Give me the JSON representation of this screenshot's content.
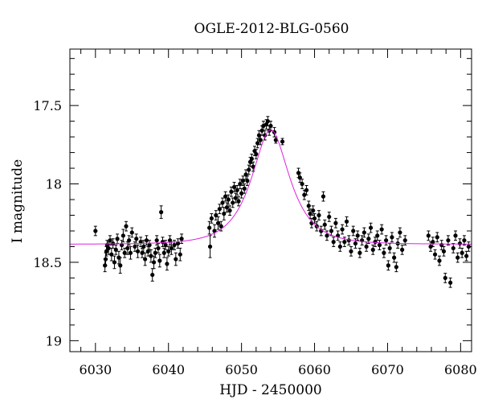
{
  "chart_data": {
    "type": "scatter",
    "title": "OGLE-2012-BLG-0560",
    "xlabel": "HJD - 2450000",
    "ylabel": "I magnitude",
    "xlim": [
      6026.5,
      6081.5
    ],
    "ylim": [
      19.07,
      17.14
    ],
    "y_axis_inverted": true,
    "grid": false,
    "x_ticks": [
      6030,
      6040,
      6050,
      6060,
      6070,
      6080
    ],
    "x_tick_labels": [
      "6030",
      "6040",
      "6050",
      "6060",
      "6070",
      "6080"
    ],
    "y_ticks": [
      17.5,
      18,
      18.5,
      19
    ],
    "y_tick_labels": [
      "17.5",
      "18",
      "18.5",
      "19"
    ],
    "colors": {
      "points": "#000000",
      "model": "#dd22dd"
    },
    "model": {
      "baseline_mag": 18.385,
      "peak_mag": 17.655,
      "t0": 6054.0,
      "tE": 4.2
    },
    "series": [
      {
        "points": [
          [
            6030.0,
            18.3,
            0.03
          ],
          [
            6031.3,
            18.52,
            0.04
          ],
          [
            6031.4,
            18.48,
            0.04
          ],
          [
            6031.5,
            18.43,
            0.03
          ],
          [
            6031.6,
            18.39,
            0.03
          ],
          [
            6031.8,
            18.41,
            0.04
          ],
          [
            6032.0,
            18.36,
            0.03
          ],
          [
            6032.2,
            18.45,
            0.04
          ],
          [
            6032.4,
            18.38,
            0.03
          ],
          [
            6032.6,
            18.5,
            0.04
          ],
          [
            6032.8,
            18.42,
            0.03
          ],
          [
            6033.0,
            18.35,
            0.03
          ],
          [
            6033.2,
            18.47,
            0.04
          ],
          [
            6033.4,
            18.52,
            0.05
          ],
          [
            6033.6,
            18.39,
            0.03
          ],
          [
            6033.8,
            18.33,
            0.04
          ],
          [
            6034.0,
            18.44,
            0.03
          ],
          [
            6034.2,
            18.27,
            0.03
          ],
          [
            6034.4,
            18.41,
            0.04
          ],
          [
            6034.6,
            18.36,
            0.03
          ],
          [
            6034.8,
            18.44,
            0.04
          ],
          [
            6035.0,
            18.31,
            0.03
          ],
          [
            6035.4,
            18.4,
            0.03
          ],
          [
            6035.6,
            18.35,
            0.03
          ],
          [
            6035.8,
            18.43,
            0.04
          ],
          [
            6036.2,
            18.37,
            0.03
          ],
          [
            6036.4,
            18.44,
            0.03
          ],
          [
            6036.6,
            18.4,
            0.04
          ],
          [
            6036.8,
            18.48,
            0.04
          ],
          [
            6037.0,
            18.36,
            0.03
          ],
          [
            6037.2,
            18.43,
            0.03
          ],
          [
            6037.4,
            18.39,
            0.03
          ],
          [
            6037.6,
            18.46,
            0.04
          ],
          [
            6037.8,
            18.58,
            0.04
          ],
          [
            6038.0,
            18.5,
            0.04
          ],
          [
            6038.2,
            18.44,
            0.03
          ],
          [
            6038.4,
            18.36,
            0.03
          ],
          [
            6038.6,
            18.41,
            0.03
          ],
          [
            6038.8,
            18.49,
            0.04
          ],
          [
            6039.0,
            18.18,
            0.04
          ],
          [
            6039.2,
            18.37,
            0.03
          ],
          [
            6039.4,
            18.44,
            0.03
          ],
          [
            6039.6,
            18.39,
            0.03
          ],
          [
            6039.8,
            18.51,
            0.04
          ],
          [
            6040.0,
            18.43,
            0.03
          ],
          [
            6040.2,
            18.36,
            0.03
          ],
          [
            6040.4,
            18.41,
            0.04
          ],
          [
            6040.8,
            18.39,
            0.03
          ],
          [
            6041.0,
            18.48,
            0.04
          ],
          [
            6041.3,
            18.38,
            0.03
          ],
          [
            6041.6,
            18.45,
            0.04
          ],
          [
            6041.8,
            18.35,
            0.03
          ],
          [
            6045.6,
            18.28,
            0.04
          ],
          [
            6045.7,
            18.4,
            0.07
          ],
          [
            6045.9,
            18.22,
            0.03
          ],
          [
            6046.3,
            18.3,
            0.04
          ],
          [
            6046.5,
            18.2,
            0.03
          ],
          [
            6046.8,
            18.25,
            0.04
          ],
          [
            6047.0,
            18.16,
            0.03
          ],
          [
            6047.2,
            18.27,
            0.03
          ],
          [
            6047.4,
            18.12,
            0.03
          ],
          [
            6047.6,
            18.19,
            0.04
          ],
          [
            6047.8,
            18.08,
            0.03
          ],
          [
            6048.0,
            18.15,
            0.03
          ],
          [
            6048.2,
            18.1,
            0.03
          ],
          [
            6048.4,
            18.17,
            0.03
          ],
          [
            6048.6,
            18.05,
            0.03
          ],
          [
            6048.8,
            18.12,
            0.03
          ],
          [
            6049.0,
            18.02,
            0.03
          ],
          [
            6049.2,
            18.09,
            0.03
          ],
          [
            6049.4,
            18.04,
            0.03
          ],
          [
            6049.6,
            18.11,
            0.03
          ],
          [
            6049.8,
            18.0,
            0.03
          ],
          [
            6050.0,
            18.06,
            0.03
          ],
          [
            6050.2,
            17.98,
            0.03
          ],
          [
            6050.4,
            18.03,
            0.03
          ],
          [
            6050.6,
            17.94,
            0.03
          ],
          [
            6050.8,
            17.98,
            0.03
          ],
          [
            6051.0,
            17.91,
            0.03
          ],
          [
            6051.2,
            17.86,
            0.03
          ],
          [
            6051.4,
            17.84,
            0.03
          ],
          [
            6051.6,
            17.89,
            0.03
          ],
          [
            6051.8,
            17.79,
            0.03
          ],
          [
            6052.0,
            17.81,
            0.03
          ],
          [
            6052.2,
            17.74,
            0.03
          ],
          [
            6052.4,
            17.69,
            0.03
          ],
          [
            6052.6,
            17.72,
            0.03
          ],
          [
            6052.8,
            17.66,
            0.03
          ],
          [
            6053.0,
            17.63,
            0.03
          ],
          [
            6053.2,
            17.69,
            0.03
          ],
          [
            6053.4,
            17.62,
            0.03
          ],
          [
            6053.6,
            17.6,
            0.03
          ],
          [
            6053.8,
            17.66,
            0.03
          ],
          [
            6054.0,
            17.63,
            0.03
          ],
          [
            6054.5,
            17.67,
            0.03
          ],
          [
            6054.7,
            17.72,
            0.02
          ],
          [
            6055.6,
            17.73,
            0.02
          ],
          [
            6057.8,
            17.93,
            0.03
          ],
          [
            6058.0,
            17.96,
            0.03
          ],
          [
            6058.3,
            18.0,
            0.03
          ],
          [
            6058.6,
            18.07,
            0.03
          ],
          [
            6058.9,
            18.04,
            0.03
          ],
          [
            6059.2,
            18.14,
            0.03
          ],
          [
            6059.4,
            18.19,
            0.03
          ],
          [
            6059.6,
            18.25,
            0.03
          ],
          [
            6059.8,
            18.17,
            0.03
          ],
          [
            6060.0,
            18.22,
            0.03
          ],
          [
            6060.3,
            18.27,
            0.03
          ],
          [
            6060.6,
            18.2,
            0.03
          ],
          [
            6060.9,
            18.3,
            0.03
          ],
          [
            6061.2,
            18.08,
            0.03
          ],
          [
            6061.4,
            18.26,
            0.03
          ],
          [
            6061.7,
            18.33,
            0.03
          ],
          [
            6062.0,
            18.21,
            0.03
          ],
          [
            6062.3,
            18.3,
            0.03
          ],
          [
            6062.6,
            18.37,
            0.03
          ],
          [
            6062.9,
            18.25,
            0.03
          ],
          [
            6063.2,
            18.33,
            0.03
          ],
          [
            6063.5,
            18.4,
            0.03
          ],
          [
            6063.8,
            18.29,
            0.03
          ],
          [
            6064.1,
            18.37,
            0.03
          ],
          [
            6064.4,
            18.24,
            0.03
          ],
          [
            6064.7,
            18.36,
            0.03
          ],
          [
            6065.0,
            18.43,
            0.03
          ],
          [
            6065.3,
            18.3,
            0.03
          ],
          [
            6065.6,
            18.38,
            0.03
          ],
          [
            6065.9,
            18.33,
            0.03
          ],
          [
            6066.2,
            18.44,
            0.03
          ],
          [
            6066.5,
            18.36,
            0.03
          ],
          [
            6066.8,
            18.31,
            0.03
          ],
          [
            6067.1,
            18.4,
            0.03
          ],
          [
            6067.4,
            18.35,
            0.03
          ],
          [
            6067.7,
            18.28,
            0.03
          ],
          [
            6068.0,
            18.42,
            0.03
          ],
          [
            6068.3,
            18.37,
            0.03
          ],
          [
            6068.6,
            18.33,
            0.03
          ],
          [
            6068.9,
            18.39,
            0.03
          ],
          [
            6069.2,
            18.29,
            0.03
          ],
          [
            6069.5,
            18.44,
            0.03
          ],
          [
            6069.8,
            18.36,
            0.03
          ],
          [
            6070.1,
            18.52,
            0.03
          ],
          [
            6070.3,
            18.41,
            0.03
          ],
          [
            6070.6,
            18.34,
            0.03
          ],
          [
            6070.9,
            18.47,
            0.03
          ],
          [
            6071.2,
            18.53,
            0.03
          ],
          [
            6071.4,
            18.38,
            0.03
          ],
          [
            6071.7,
            18.31,
            0.03
          ],
          [
            6072.0,
            18.42,
            0.03
          ],
          [
            6072.4,
            18.36,
            0.03
          ],
          [
            6075.6,
            18.33,
            0.03
          ],
          [
            6075.9,
            18.4,
            0.03
          ],
          [
            6076.2,
            18.37,
            0.03
          ],
          [
            6076.5,
            18.45,
            0.03
          ],
          [
            6076.8,
            18.34,
            0.03
          ],
          [
            6077.1,
            18.49,
            0.03
          ],
          [
            6077.4,
            18.39,
            0.03
          ],
          [
            6077.7,
            18.43,
            0.03
          ],
          [
            6077.9,
            18.6,
            0.03
          ],
          [
            6078.3,
            18.36,
            0.03
          ],
          [
            6078.6,
            18.63,
            0.03
          ],
          [
            6079.0,
            18.41,
            0.03
          ],
          [
            6079.3,
            18.33,
            0.03
          ],
          [
            6079.6,
            18.47,
            0.03
          ],
          [
            6079.9,
            18.38,
            0.03
          ],
          [
            6080.2,
            18.44,
            0.03
          ],
          [
            6080.5,
            18.36,
            0.03
          ],
          [
            6080.8,
            18.46,
            0.03
          ],
          [
            6081.1,
            18.4,
            0.03
          ]
        ]
      }
    ]
  }
}
